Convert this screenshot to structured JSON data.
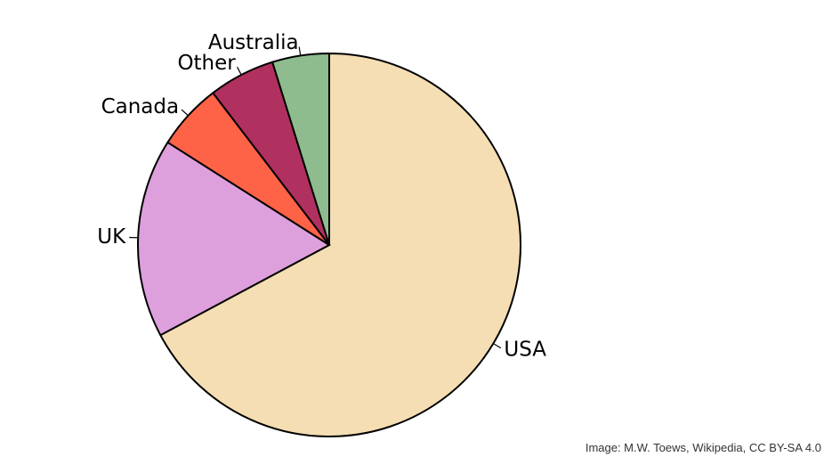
{
  "chart_data": {
    "type": "pie",
    "start_angle_deg": 90,
    "direction": "clockwise",
    "slices": [
      {
        "label": "USA",
        "value": 67.2,
        "color": "#F5DEB3"
      },
      {
        "label": "UK",
        "value": 16.8,
        "color": "#DDA0DD"
      },
      {
        "label": "Canada",
        "value": 5.6,
        "color": "#FF6347"
      },
      {
        "label": "Other",
        "value": 5.6,
        "color": "#B03060"
      },
      {
        "label": "Australia",
        "value": 4.8,
        "color": "#8FBC8F"
      }
    ]
  },
  "credit": "Image: M.W. Toews, Wikipedia, CC BY-SA 4.0"
}
